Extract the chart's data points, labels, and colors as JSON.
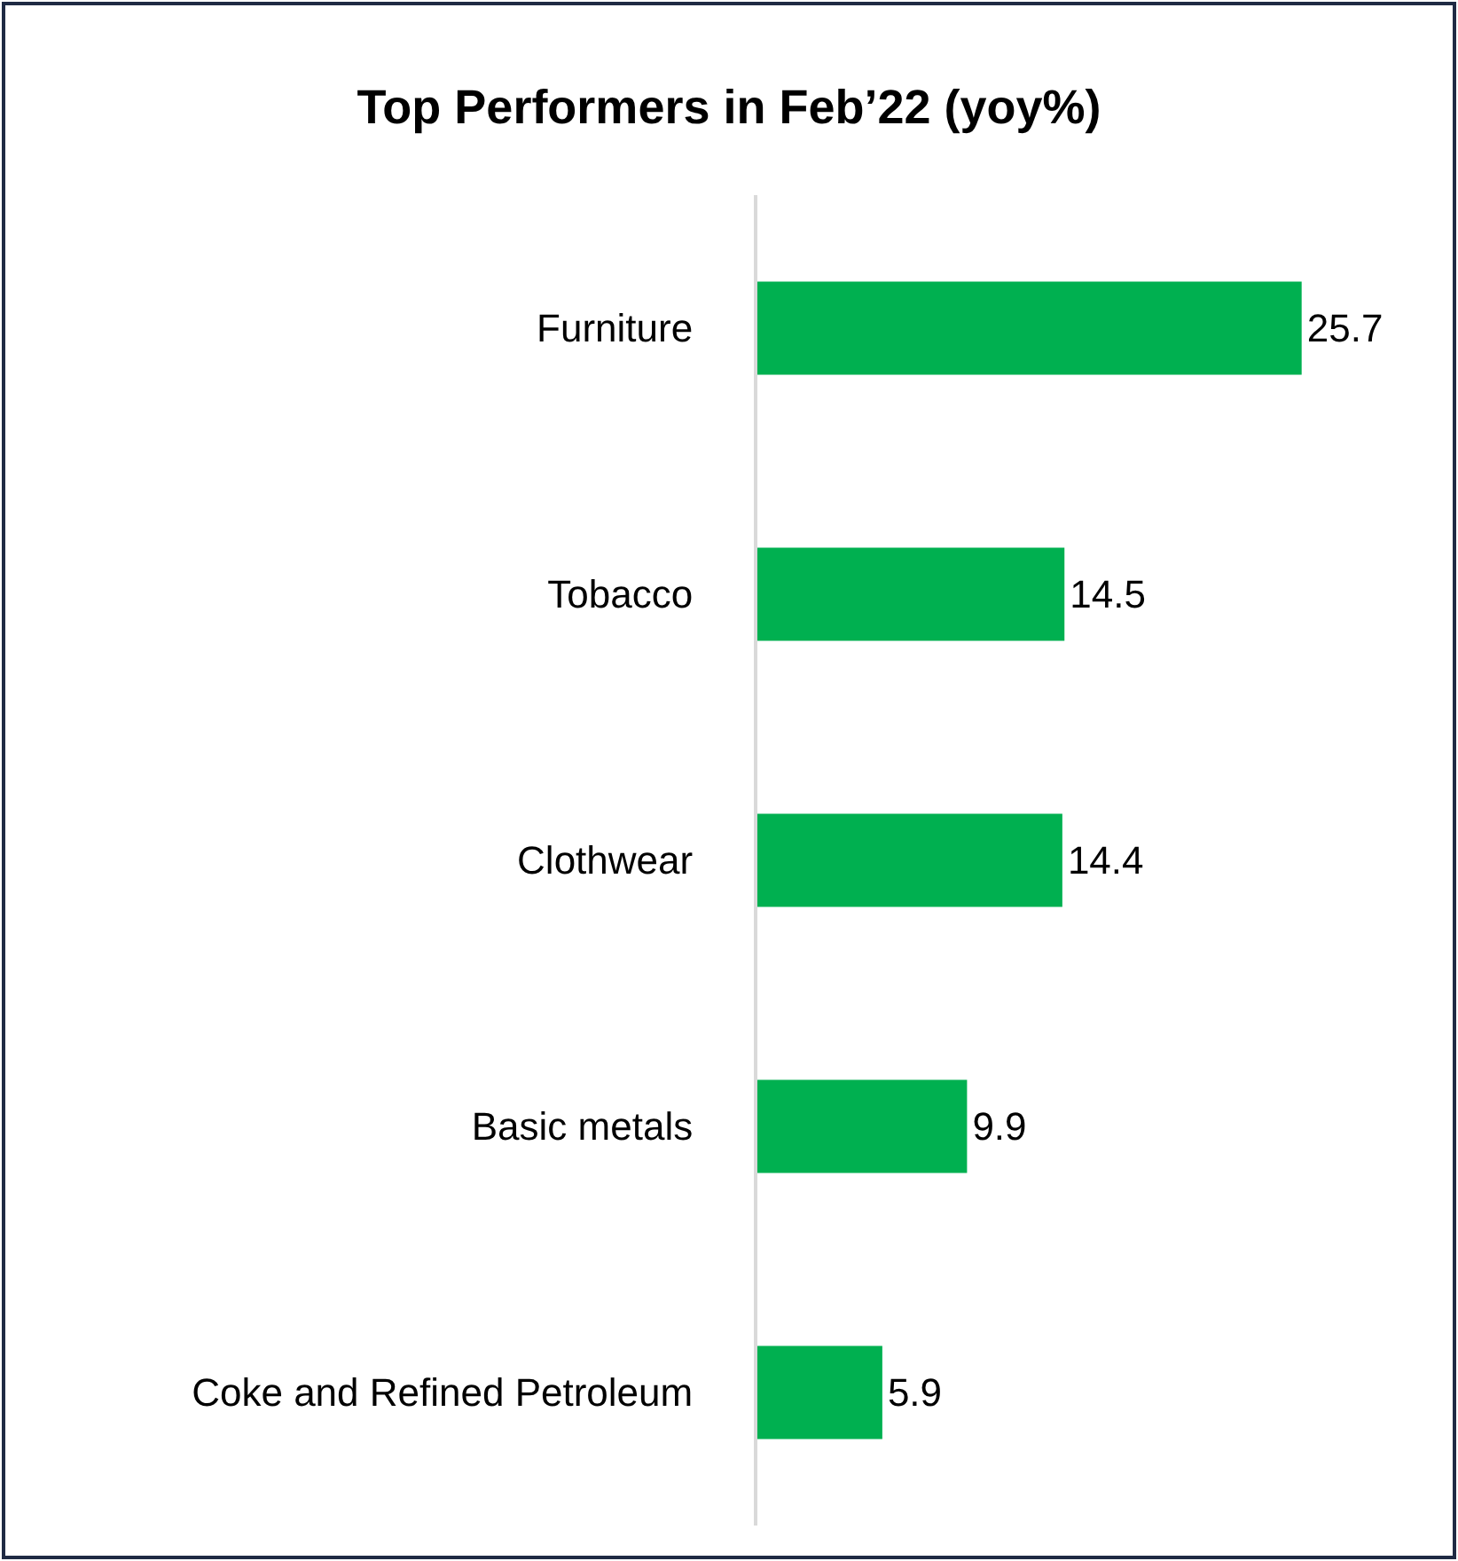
{
  "chart_data": {
    "type": "bar",
    "orientation": "horizontal",
    "title": "Top Performers in Feb’22 (yoy%)",
    "categories": [
      "Furniture",
      "Tobacco",
      "Clothwear",
      "Basic metals",
      "Coke and Refined Petroleum"
    ],
    "values": [
      25.7,
      14.5,
      14.4,
      9.9,
      5.9
    ],
    "color": "#00b050",
    "data_labels": true
  }
}
